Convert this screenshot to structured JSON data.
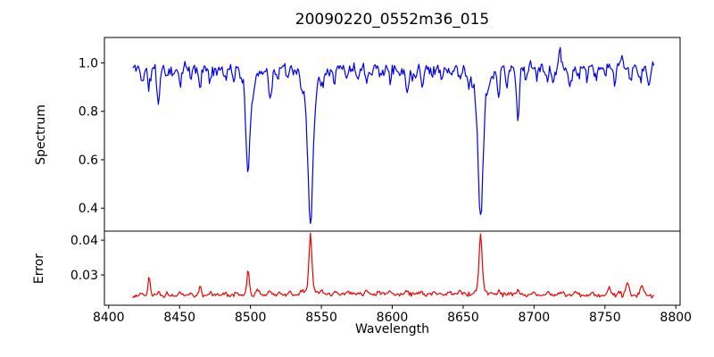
{
  "title": "20090220_0552m36_015",
  "chart_data": {
    "type": "line",
    "title": "20090220_0552m36_015",
    "xlabel": "Wavelength",
    "xlim": [
      8397,
      8803
    ],
    "xticks": [
      8400,
      8450,
      8500,
      8550,
      8600,
      8650,
      8700,
      8750,
      8800
    ],
    "x_data_range": [
      8417,
      8785
    ],
    "step": 0.75,
    "grid": false,
    "legend": "none",
    "description": "Stellar spectrum around the Ca II infrared triplet (deep absorption lines near 8498, 8542, 8662) with matching error spectrum below; features given as [center_wavelength, amplitude, sigma]",
    "subplots": [
      {
        "name": "spectrum",
        "ylabel": "Spectrum",
        "color": "#0000ee",
        "line_width": 1.2,
        "ylim": [
          0.305,
          1.105
        ],
        "yticks": [
          0.4,
          0.6,
          0.8,
          1.0
        ],
        "ytick_labels": [
          "0.4",
          "0.6",
          "0.8",
          "1.0"
        ],
        "base": 0.978,
        "noise_amp": 0.033,
        "feature_sign": -1,
        "seed": 11,
        "features": [
          [
            8424,
            0.045,
            1.2
          ],
          [
            8428.5,
            0.075,
            1.0
          ],
          [
            8435,
            0.15,
            0.9
          ],
          [
            8441,
            0.035,
            0.9
          ],
          [
            8446,
            0.04,
            0.9
          ],
          [
            8450.5,
            0.055,
            0.9
          ],
          [
            8458,
            0.04,
            0.9
          ],
          [
            8464.5,
            0.07,
            1.0
          ],
          [
            8472,
            0.065,
            0.9
          ],
          [
            8482,
            0.04,
            0.9
          ],
          [
            8488,
            0.035,
            0.9
          ],
          [
            8498.3,
            0.36,
            1.4
          ],
          [
            8498.3,
            0.08,
            3.5
          ],
          [
            8502.5,
            0.05,
            1.0
          ],
          [
            8509,
            0.03,
            0.9
          ],
          [
            8514,
            0.115,
            1.1
          ],
          [
            8518.5,
            0.05,
            0.9
          ],
          [
            8526,
            0.035,
            0.9
          ],
          [
            8536,
            0.045,
            0.9
          ],
          [
            8542.3,
            0.5,
            1.7
          ],
          [
            8542.3,
            0.13,
            4.5
          ],
          [
            8551,
            0.04,
            0.9
          ],
          [
            8559,
            0.045,
            0.9
          ],
          [
            8568,
            0.035,
            0.9
          ],
          [
            8575,
            0.03,
            0.9
          ],
          [
            8582,
            0.045,
            0.9
          ],
          [
            8592,
            0.03,
            0.9
          ],
          [
            8598.5,
            0.05,
            0.9
          ],
          [
            8605,
            0.035,
            0.9
          ],
          [
            8610.5,
            0.095,
            1.1
          ],
          [
            8615,
            0.04,
            0.9
          ],
          [
            8621,
            0.06,
            1.0
          ],
          [
            8628,
            0.03,
            0.9
          ],
          [
            8635,
            0.03,
            0.9
          ],
          [
            8642,
            0.035,
            0.9
          ],
          [
            8648,
            0.045,
            0.9
          ],
          [
            8654,
            0.04,
            0.9
          ],
          [
            8662.3,
            0.49,
            1.6
          ],
          [
            8662.3,
            0.13,
            4.5
          ],
          [
            8668,
            0.04,
            0.9
          ],
          [
            8675,
            0.115,
            1.0
          ],
          [
            8680.8,
            0.075,
            0.9
          ],
          [
            8688.5,
            0.205,
            1.0
          ],
          [
            8694,
            0.035,
            0.9
          ],
          [
            8702,
            0.03,
            0.9
          ],
          [
            8709,
            0.035,
            0.9
          ],
          [
            8713.5,
            0.045,
            0.9
          ],
          [
            8718,
            -0.095,
            0.6
          ],
          [
            8725.5,
            0.07,
            1.0
          ],
          [
            8731,
            0.035,
            0.9
          ],
          [
            8737,
            0.04,
            0.9
          ],
          [
            8744,
            0.035,
            0.9
          ],
          [
            8750,
            0.04,
            0.9
          ],
          [
            8757,
            0.05,
            0.9
          ],
          [
            8762,
            -0.05,
            0.7
          ],
          [
            8768,
            0.045,
            0.9
          ],
          [
            8775,
            0.055,
            0.9
          ],
          [
            8781,
            0.06,
            0.9
          ]
        ]
      },
      {
        "name": "error",
        "ylabel": "Error",
        "color": "#ee0000",
        "line_width": 1.2,
        "ylim": [
          0.0213,
          0.0426
        ],
        "yticks": [
          0.03,
          0.04
        ],
        "ytick_labels": [
          "0.03",
          "0.04"
        ],
        "base": 0.0237,
        "noise_amp": 0.0007,
        "feature_sign": 1,
        "seed": 23,
        "features": [
          [
            8600,
            0.0008,
            120
          ],
          [
            8423,
            0.0008,
            1
          ],
          [
            8428.5,
            0.005,
            0.8
          ],
          [
            8435,
            0.0012,
            0.8
          ],
          [
            8441,
            0.0008,
            0.8
          ],
          [
            8450,
            0.001,
            0.8
          ],
          [
            8458,
            0.0008,
            0.8
          ],
          [
            8464.5,
            0.003,
            0.8
          ],
          [
            8472,
            0.0012,
            0.8
          ],
          [
            8482,
            0.0008,
            0.8
          ],
          [
            8490,
            0.001,
            0.8
          ],
          [
            8498.3,
            0.007,
            0.9
          ],
          [
            8505,
            0.0012,
            1.2
          ],
          [
            8514,
            0.0012,
            0.9
          ],
          [
            8520,
            0.0008,
            0.9
          ],
          [
            8528,
            0.0008,
            0.9
          ],
          [
            8536,
            0.001,
            0.9
          ],
          [
            8542.3,
            0.015,
            1.0
          ],
          [
            8542.3,
            0.002,
            3
          ],
          [
            8550,
            0.001,
            1
          ],
          [
            8560,
            0.0008,
            1
          ],
          [
            8570,
            0.0006,
            1
          ],
          [
            8582,
            0.0012,
            1
          ],
          [
            8590,
            0.0006,
            1
          ],
          [
            8598,
            0.001,
            1
          ],
          [
            8610,
            0.0012,
            1
          ],
          [
            8620,
            0.0008,
            1
          ],
          [
            8630,
            0.0008,
            1
          ],
          [
            8640,
            0.0008,
            1
          ],
          [
            8648,
            0.001,
            1
          ],
          [
            8662.3,
            0.0155,
            1.0
          ],
          [
            8662.3,
            0.002,
            3
          ],
          [
            8675,
            0.0012,
            0.9
          ],
          [
            8688.5,
            0.0015,
            0.9
          ],
          [
            8700,
            0.0008,
            1
          ],
          [
            8710,
            0.001,
            1
          ],
          [
            8720,
            0.0008,
            1
          ],
          [
            8730,
            0.001,
            1
          ],
          [
            8741,
            0.0012,
            1
          ],
          [
            8753,
            0.0022,
            1.2
          ],
          [
            8760,
            0.0015,
            1
          ],
          [
            8766,
            0.0038,
            1.2
          ],
          [
            8776,
            0.0032,
            1.3
          ]
        ]
      }
    ]
  }
}
